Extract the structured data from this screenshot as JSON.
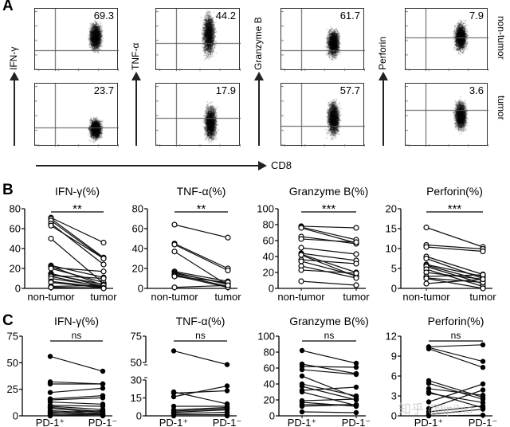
{
  "panel_labels": {
    "a": "A",
    "b": "B",
    "c": "C"
  },
  "panel_a": {
    "x_axis_label": "CD8",
    "row_labels": [
      "non-tumor",
      "tumor"
    ],
    "columns": [
      {
        "marker": "IFN-γ",
        "non_tumor_pct": "69.3",
        "tumor_pct": "23.7"
      },
      {
        "marker": "TNF-α",
        "non_tumor_pct": "44.2",
        "tumor_pct": "17.9"
      },
      {
        "marker": "Granzyme B",
        "non_tumor_pct": "61.7",
        "tumor_pct": "57.7"
      },
      {
        "marker": "Perforin",
        "non_tumor_pct": "7.9",
        "tumor_pct": "3.6"
      }
    ]
  },
  "watermark": "知乎 @lipibio",
  "chart_data": [
    {
      "type": "line",
      "panel": "B",
      "title": "IFN-γ(%)",
      "categories": [
        "non-tumor",
        "tumor"
      ],
      "ylim": [
        0,
        80
      ],
      "yticks": [
        0,
        20,
        40,
        60,
        80
      ],
      "significance": "**",
      "marker": "open-circle",
      "pairs": [
        [
          71,
          46
        ],
        [
          70,
          31
        ],
        [
          68,
          30
        ],
        [
          65,
          24
        ],
        [
          63,
          30
        ],
        [
          50,
          5
        ],
        [
          23,
          11
        ],
        [
          22,
          3
        ],
        [
          21,
          17
        ],
        [
          20,
          6
        ],
        [
          15,
          2
        ],
        [
          14,
          4
        ],
        [
          13,
          10
        ],
        [
          12,
          1
        ],
        [
          10,
          2
        ],
        [
          7,
          1
        ],
        [
          6,
          0.5
        ],
        [
          2,
          3
        ],
        [
          1,
          0.5
        ],
        [
          1,
          0
        ]
      ]
    },
    {
      "type": "line",
      "panel": "B",
      "title": "TNF-α(%)",
      "categories": [
        "non-tumor",
        "tumor"
      ],
      "ylim": [
        0,
        80
      ],
      "yticks": [
        0,
        20,
        40,
        60,
        80
      ],
      "significance": "**",
      "marker": "open-circle",
      "pairs": [
        [
          64,
          51
        ],
        [
          45,
          20
        ],
        [
          44,
          18
        ],
        [
          37,
          3
        ],
        [
          17,
          7
        ],
        [
          16,
          4
        ],
        [
          15,
          5
        ],
        [
          14,
          2
        ],
        [
          13,
          1
        ],
        [
          12,
          6
        ],
        [
          1,
          3
        ]
      ]
    },
    {
      "type": "line",
      "panel": "B",
      "title": "Granzyme B(%)",
      "categories": [
        "non-tumor",
        "tumor"
      ],
      "ylim": [
        0,
        100
      ],
      "yticks": [
        0,
        20,
        40,
        60,
        80,
        100
      ],
      "significance": "***",
      "marker": "open-circle",
      "pairs": [
        [
          78,
          76
        ],
        [
          77,
          61
        ],
        [
          76,
          57
        ],
        [
          65,
          56
        ],
        [
          62,
          58
        ],
        [
          51,
          43
        ],
        [
          44,
          35
        ],
        [
          43,
          20
        ],
        [
          42,
          15
        ],
        [
          36,
          31
        ],
        [
          34,
          16
        ],
        [
          28,
          13
        ],
        [
          23,
          19
        ],
        [
          9,
          4
        ]
      ]
    },
    {
      "type": "line",
      "panel": "B",
      "title": "Perforin(%)",
      "categories": [
        "non-tumor",
        "tumor"
      ],
      "ylim": [
        0,
        20
      ],
      "yticks": [
        0,
        5,
        10,
        15,
        20
      ],
      "significance": "***",
      "marker": "open-circle",
      "pairs": [
        [
          15.3,
          10.4
        ],
        [
          10.9,
          9.9
        ],
        [
          10.4,
          9.3
        ],
        [
          8,
          3.5
        ],
        [
          7.5,
          2.5
        ],
        [
          6,
          3
        ],
        [
          5.8,
          2
        ],
        [
          5.5,
          1.2
        ],
        [
          4.8,
          0.5
        ],
        [
          4,
          2.3
        ],
        [
          3,
          3.4
        ],
        [
          2.6,
          1.5
        ],
        [
          2.5,
          0
        ],
        [
          1.2,
          2.3
        ]
      ]
    },
    {
      "type": "line",
      "panel": "C",
      "title": "IFN-γ(%)",
      "categories": [
        "PD-1⁺",
        "PD-1⁻"
      ],
      "ylim": [
        0,
        75
      ],
      "yticks": [
        0,
        25,
        50,
        75
      ],
      "significance": "ns",
      "marker": "filled-circle",
      "pairs": [
        [
          56,
          42
        ],
        [
          32,
          30
        ],
        [
          30,
          30
        ],
        [
          22,
          26
        ],
        [
          16,
          19
        ],
        [
          15,
          17
        ],
        [
          13,
          11
        ],
        [
          10,
          9
        ],
        [
          9,
          6
        ],
        [
          8,
          4
        ],
        [
          7,
          3
        ],
        [
          5,
          2
        ],
        [
          4,
          1
        ],
        [
          3,
          5
        ],
        [
          2,
          1
        ],
        [
          1,
          0
        ],
        [
          0,
          2
        ]
      ]
    },
    {
      "type": "line",
      "panel": "C",
      "title": "TNF-α(%)",
      "categories": [
        "PD-1⁺",
        "PD-1⁻"
      ],
      "ylim": [
        0,
        75
      ],
      "yticks": [
        0,
        15,
        30,
        50,
        75
      ],
      "axis_break": [
        30,
        50
      ],
      "significance": "ns",
      "marker": "filled-circle",
      "pairs": [
        [
          61,
          48
        ],
        [
          20,
          10
        ],
        [
          19,
          21
        ],
        [
          16,
          25
        ],
        [
          8,
          8
        ],
        [
          5,
          7
        ],
        [
          4,
          6
        ],
        [
          3,
          5
        ],
        [
          2,
          3
        ],
        [
          1,
          1
        ],
        [
          0,
          0
        ]
      ]
    },
    {
      "type": "line",
      "panel": "C",
      "title": "Granzyme B(%)",
      "categories": [
        "PD-1⁺",
        "PD-1⁻"
      ],
      "ylim": [
        0,
        100
      ],
      "yticks": [
        0,
        20,
        40,
        60,
        80,
        100
      ],
      "significance": "ns",
      "marker": "filled-circle",
      "pairs": [
        [
          82,
          66
        ],
        [
          65,
          53
        ],
        [
          62,
          61
        ],
        [
          58,
          52
        ],
        [
          50,
          23
        ],
        [
          40,
          25
        ],
        [
          37,
          20
        ],
        [
          32,
          36
        ],
        [
          30,
          13
        ],
        [
          19,
          21
        ],
        [
          17,
          12
        ],
        [
          14,
          14
        ],
        [
          12,
          14
        ],
        [
          5,
          4
        ]
      ]
    },
    {
      "type": "line",
      "panel": "C",
      "title": "Perforin(%)",
      "categories": [
        "PD-1⁺",
        "PD-1⁻"
      ],
      "ylim": [
        0,
        12
      ],
      "yticks": [
        0,
        3,
        6,
        9,
        12
      ],
      "significance": "ns",
      "marker": "filled-circle",
      "pairs": [
        [
          10.4,
          10.7
        ],
        [
          10.3,
          8.2
        ],
        [
          10.1,
          7.3
        ],
        [
          5.3,
          2.8
        ],
        [
          4.9,
          2.5
        ],
        [
          4.1,
          3.1
        ],
        [
          3.6,
          1.2
        ],
        [
          3.4,
          2
        ],
        [
          2.1,
          4.8
        ],
        [
          1.1,
          3.9
        ],
        [
          0.6,
          1.5
        ],
        [
          0.2,
          1
        ],
        [
          0,
          0.1
        ]
      ]
    }
  ]
}
